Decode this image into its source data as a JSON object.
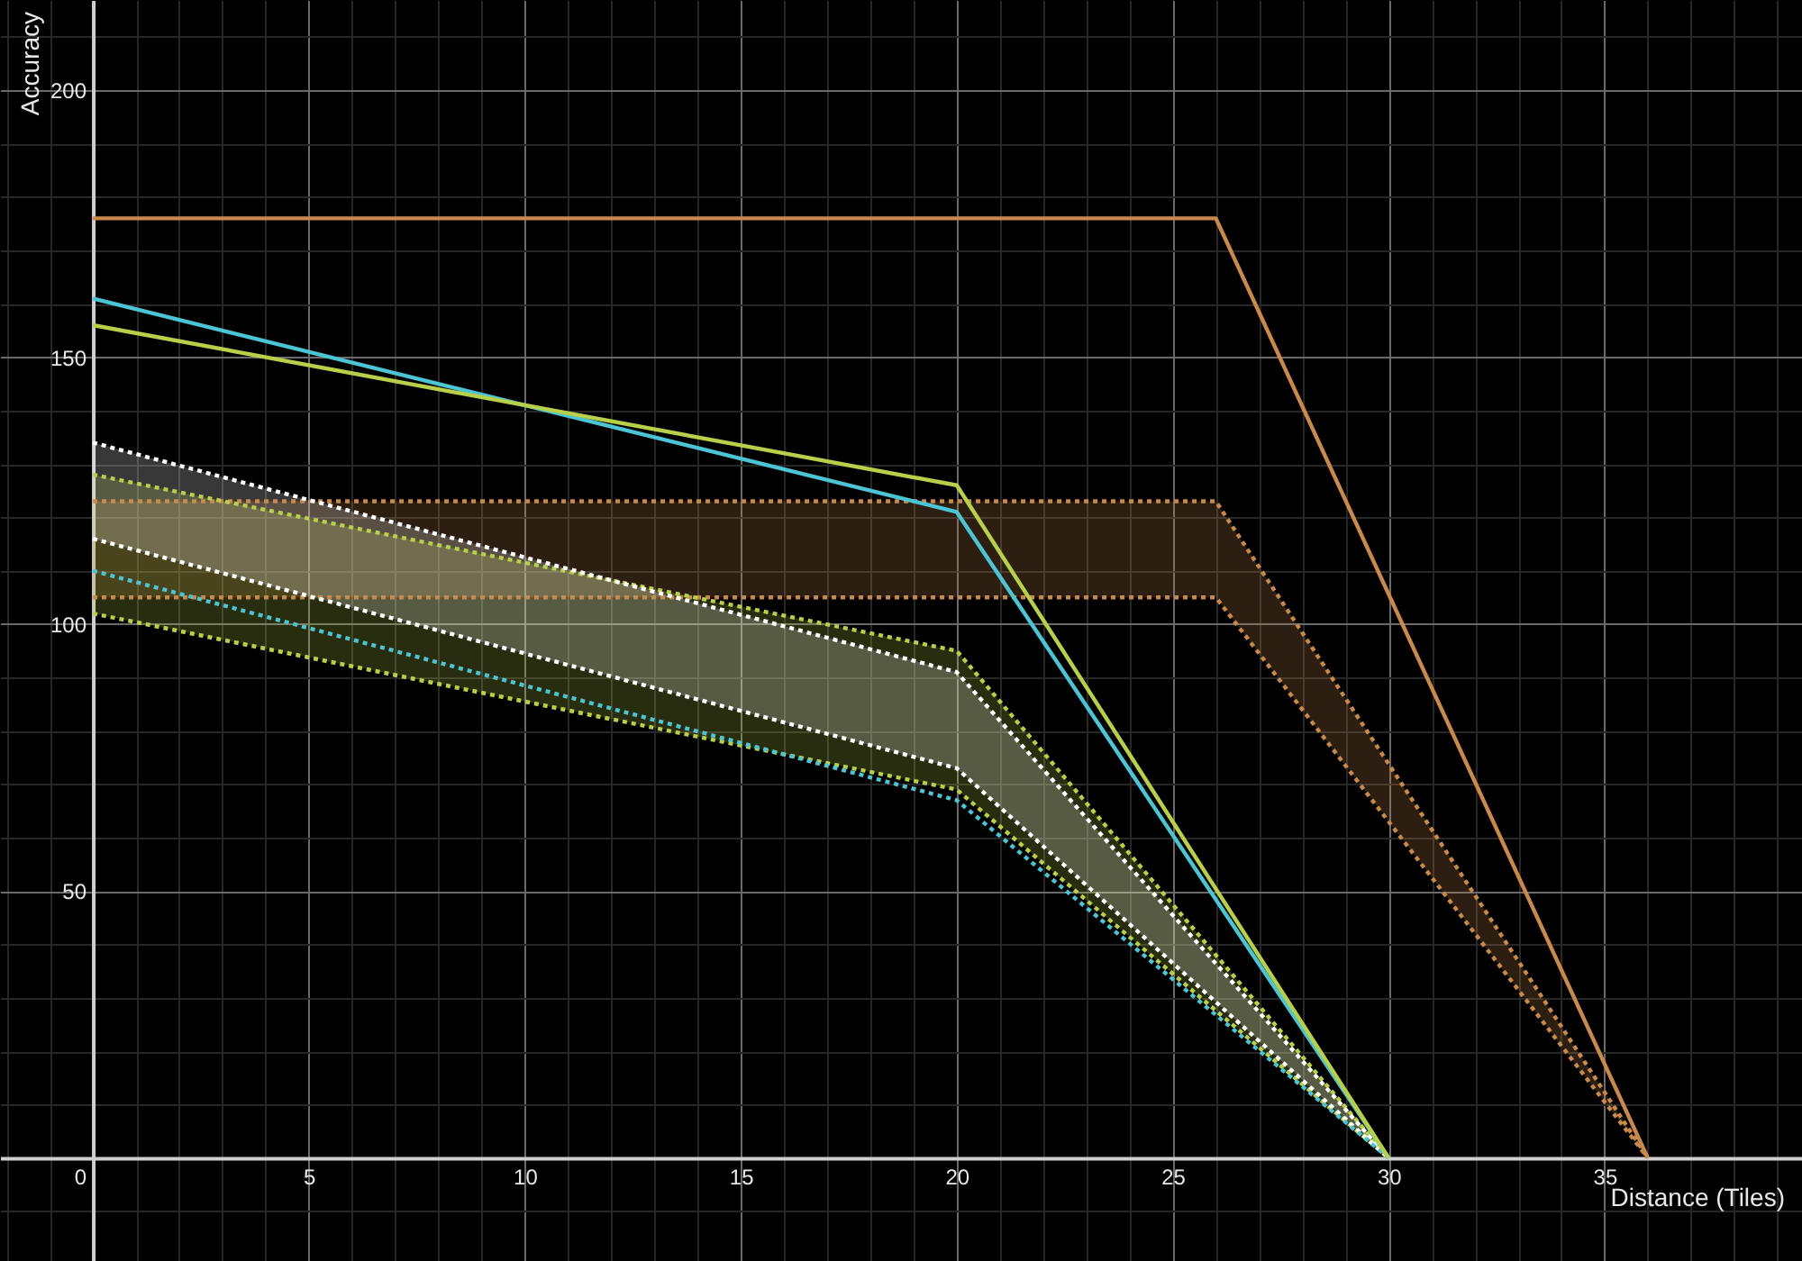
{
  "chart_data": {
    "type": "line",
    "xlabel": "Distance (Tiles)",
    "ylabel": "Accuracy",
    "xlim": [
      -2.15,
      39.57
    ],
    "ylim": [
      -19.3,
      216.9
    ],
    "xticks": [
      0,
      5,
      10,
      15,
      20,
      25,
      30,
      35
    ],
    "yticks": [
      50,
      100,
      150,
      200
    ],
    "grid": true,
    "line_style": "solid",
    "series": [
      {
        "color": "#c88a4c",
        "x": [
          0,
          26,
          36
        ],
        "values": [
          176,
          176,
          0
        ]
      },
      {
        "color": "#c88a4c",
        "x": [
          0,
          26,
          36
        ],
        "values": [
          123,
          123,
          0
        ],
        "lower": [
          105,
          105,
          0
        ],
        "upper": [
          123,
          123,
          0
        ],
        "line_style": "dotted"
      },
      {
        "color": "#c88a4c",
        "x": [
          0,
          26,
          36
        ],
        "values": [
          105,
          105,
          0
        ],
        "line_style": "dotted"
      },
      {
        "color": "#b8cf4a",
        "x": [
          0,
          20,
          30
        ],
        "values": [
          128,
          95,
          0
        ],
        "lower": [
          102,
          69,
          0
        ],
        "upper": [
          128,
          95,
          0
        ],
        "line_style": "dotted"
      },
      {
        "color": "#b8cf4a",
        "x": [
          0,
          20,
          30
        ],
        "values": [
          102,
          69,
          0
        ],
        "line_style": "dotted"
      },
      {
        "color": "#ffffff",
        "x": [
          0,
          20,
          30
        ],
        "values": [
          134,
          91,
          0
        ],
        "lower": [
          116,
          73,
          0
        ],
        "upper": [
          134,
          91,
          0
        ],
        "line_style": "dotted"
      },
      {
        "color": "#ffffff",
        "x": [
          0,
          20,
          30
        ],
        "values": [
          116,
          73,
          0
        ],
        "line_style": "dotted"
      },
      {
        "color": "#4cc4d4",
        "x": [
          0,
          20,
          30
        ],
        "values": [
          110,
          67,
          0
        ],
        "line_style": "dotted"
      },
      {
        "color": "#4cc4d4",
        "x": [
          0,
          20,
          30
        ],
        "values": [
          161,
          121,
          0
        ]
      },
      {
        "color": "#b8cf4a",
        "x": [
          0,
          20,
          30
        ],
        "values": [
          156,
          126,
          0
        ]
      }
    ]
  }
}
